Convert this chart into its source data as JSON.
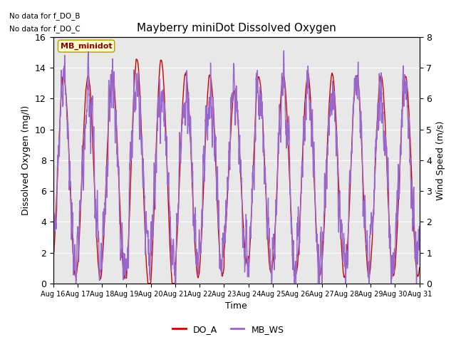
{
  "title": "Mayberry miniDot Dissolved Oxygen",
  "xlabel": "Time",
  "ylabel_left": "Dissolved Oxygen (mg/l)",
  "ylabel_right": "Wind Speed (m/s)",
  "no_data_text": [
    "No data for f_DO_B",
    "No data for f_DO_C"
  ],
  "legend_box_label": "MB_minidot",
  "legend_entries": [
    "DO_A",
    "MB_WS"
  ],
  "legend_colors": [
    "#cc0000",
    "#9966cc"
  ],
  "ylim_left": [
    0,
    16
  ],
  "ylim_right": [
    0,
    8
  ],
  "yticks_left": [
    0,
    2,
    4,
    6,
    8,
    10,
    12,
    14,
    16
  ],
  "yticks_right": [
    0.0,
    1.0,
    2.0,
    3.0,
    4.0,
    5.0,
    6.0,
    7.0,
    8.0
  ],
  "xtick_labels": [
    "Aug 16",
    "Aug 17",
    "Aug 18",
    "Aug 19",
    "Aug 20",
    "Aug 21",
    "Aug 22",
    "Aug 23",
    "Aug 24",
    "Aug 25",
    "Aug 26",
    "Aug 27",
    "Aug 28",
    "Aug 29",
    "Aug 30",
    "Aug 31"
  ],
  "color_do": "#cc0000",
  "color_ws": "#9966cc",
  "bg_color": "#e8e8e8",
  "linewidth_do": 1.0,
  "linewidth_ws": 1.0,
  "seed": 12345
}
